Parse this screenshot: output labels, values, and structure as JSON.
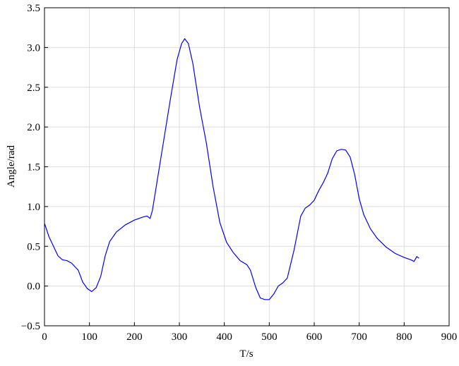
{
  "chart_data": {
    "type": "line",
    "xlabel": "T/s",
    "ylabel": "Angle/rad",
    "xlim": [
      0,
      900
    ],
    "ylim": [
      -0.5,
      3.5
    ],
    "xticks": [
      0,
      100,
      200,
      300,
      400,
      500,
      600,
      700,
      800,
      900
    ],
    "yticks": [
      {
        "value": -0.5,
        "label": "−0.5"
      },
      {
        "value": 0,
        "label": "0.0"
      },
      0.5,
      {
        "value": 1,
        "label": "1.0"
      },
      1.5,
      {
        "value": 2,
        "label": "2.0"
      },
      2.5,
      {
        "value": 3,
        "label": "3.0"
      },
      3.5
    ],
    "grid": true,
    "x": [
      0,
      10,
      20,
      30,
      40,
      50,
      60,
      75,
      85,
      95,
      105,
      115,
      125,
      135,
      145,
      160,
      180,
      200,
      220,
      228,
      235,
      240,
      260,
      280,
      295,
      305,
      312,
      320,
      330,
      345,
      360,
      375,
      390,
      405,
      420,
      435,
      450,
      458,
      470,
      480,
      490,
      500,
      510,
      520,
      530,
      540,
      555,
      570,
      580,
      590,
      600,
      610,
      620,
      630,
      640,
      650,
      660,
      670,
      680,
      690,
      700,
      710,
      725,
      740,
      760,
      780,
      800,
      815,
      822,
      828,
      833
    ],
    "series": [
      {
        "color": "#0000ff",
        "values": [
          0.79,
          0.62,
          0.5,
          0.38,
          0.33,
          0.32,
          0.29,
          0.2,
          0.05,
          -0.03,
          -0.07,
          -0.02,
          0.12,
          0.38,
          0.56,
          0.68,
          0.77,
          0.83,
          0.87,
          0.88,
          0.85,
          0.95,
          1.65,
          2.35,
          2.85,
          3.05,
          3.11,
          3.05,
          2.8,
          2.25,
          1.8,
          1.25,
          0.8,
          0.55,
          0.42,
          0.32,
          0.27,
          0.2,
          -0.02,
          -0.15,
          -0.17,
          -0.17,
          -0.1,
          0.0,
          0.04,
          0.1,
          0.45,
          0.88,
          0.98,
          1.02,
          1.08,
          1.2,
          1.3,
          1.42,
          1.6,
          1.7,
          1.72,
          1.71,
          1.62,
          1.4,
          1.1,
          0.9,
          0.72,
          0.6,
          0.49,
          0.41,
          0.36,
          0.33,
          0.31,
          0.37,
          0.35
        ]
      }
    ]
  }
}
